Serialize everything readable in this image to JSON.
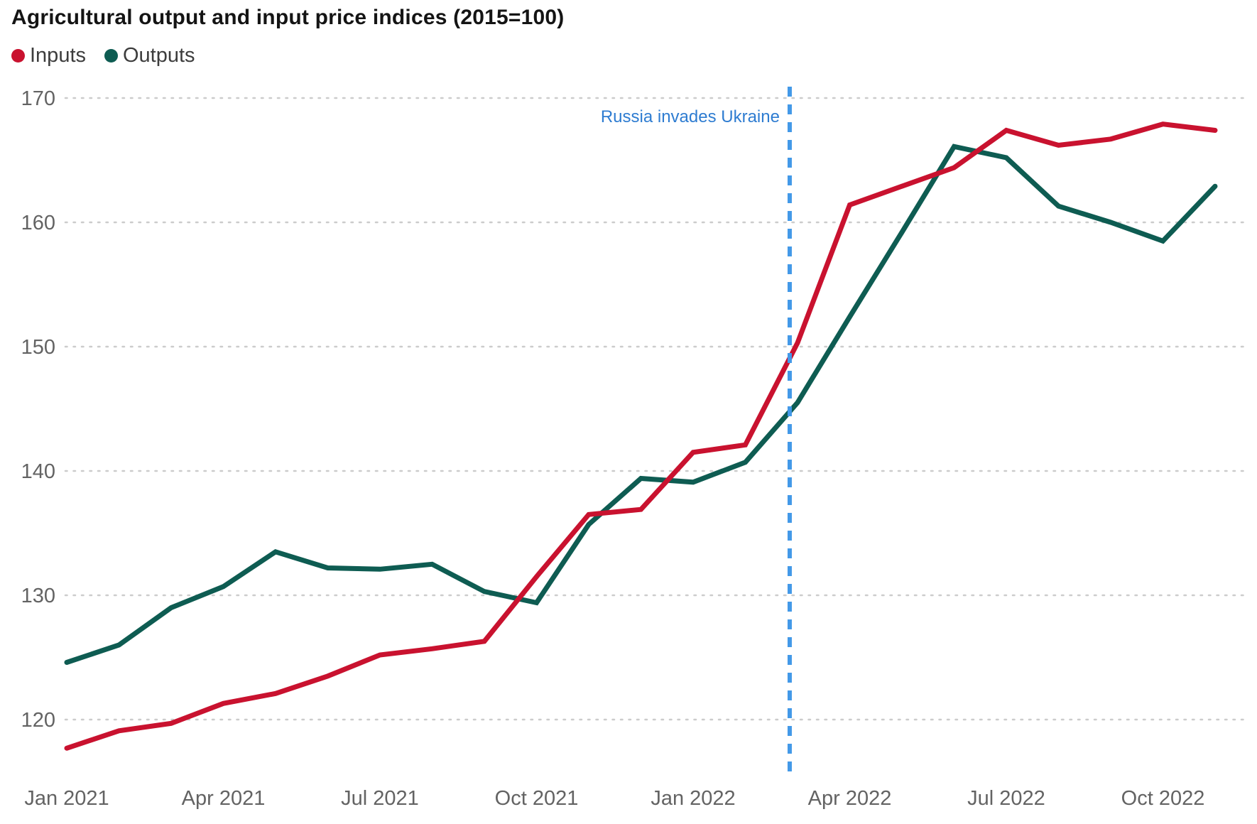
{
  "chart_data": {
    "type": "line",
    "title": "Agricultural output and input price indices (2015=100)",
    "xlabel": "",
    "ylabel": "",
    "grid": "horizontal-dotted",
    "legend_position": "top-left",
    "yticks": [
      120,
      130,
      140,
      150,
      160,
      170
    ],
    "ylim": [
      116,
      171
    ],
    "categories": [
      "Jan 2021",
      "Feb 2021",
      "Mar 2021",
      "Apr 2021",
      "May 2021",
      "Jun 2021",
      "Jul 2021",
      "Aug 2021",
      "Sep 2021",
      "Oct 2021",
      "Nov 2021",
      "Dec 2021",
      "Jan 2022",
      "Feb 2022",
      "Mar 2022",
      "Apr 2022",
      "May 2022",
      "Jun 2022",
      "Jul 2022",
      "Aug 2022",
      "Sep 2022",
      "Oct 2022",
      "Nov 2022"
    ],
    "x_tick_labels": [
      {
        "label": "Jan 2021",
        "month_index": 0
      },
      {
        "label": "Apr 2021",
        "month_index": 3
      },
      {
        "label": "Jul 2021",
        "month_index": 6
      },
      {
        "label": "Oct 2021",
        "month_index": 9
      },
      {
        "label": "Jan 2022",
        "month_index": 12
      },
      {
        "label": "Apr 2022",
        "month_index": 15
      },
      {
        "label": "Jul 2022",
        "month_index": 18
      },
      {
        "label": "Oct 2022",
        "month_index": 21
      }
    ],
    "series": [
      {
        "name": "Outputs",
        "color": "#0e5c52",
        "values": [
          124.6,
          126.0,
          129.0,
          130.7,
          133.5,
          132.2,
          132.1,
          132.5,
          130.3,
          129.4,
          135.7,
          139.4,
          139.1,
          140.7,
          145.5,
          152.4,
          159.2,
          166.1,
          165.2,
          161.3,
          160.0,
          158.5,
          162.9
        ]
      },
      {
        "name": "Inputs",
        "color": "#c9122f",
        "values": [
          117.7,
          119.1,
          119.7,
          121.3,
          122.1,
          123.5,
          125.2,
          125.7,
          126.3,
          131.5,
          136.5,
          136.9,
          141.5,
          142.1,
          150.3,
          161.4,
          162.9,
          164.4,
          167.4,
          166.2,
          166.7,
          167.9,
          167.4
        ]
      }
    ],
    "legend_order": [
      "Inputs",
      "Outputs"
    ],
    "annotation": {
      "text": "Russia invades Ukraine",
      "month_index": 13.85,
      "line_color": "#4399e8",
      "text_color": "#2e7cd1",
      "line_style": "dashed-vertical"
    }
  }
}
